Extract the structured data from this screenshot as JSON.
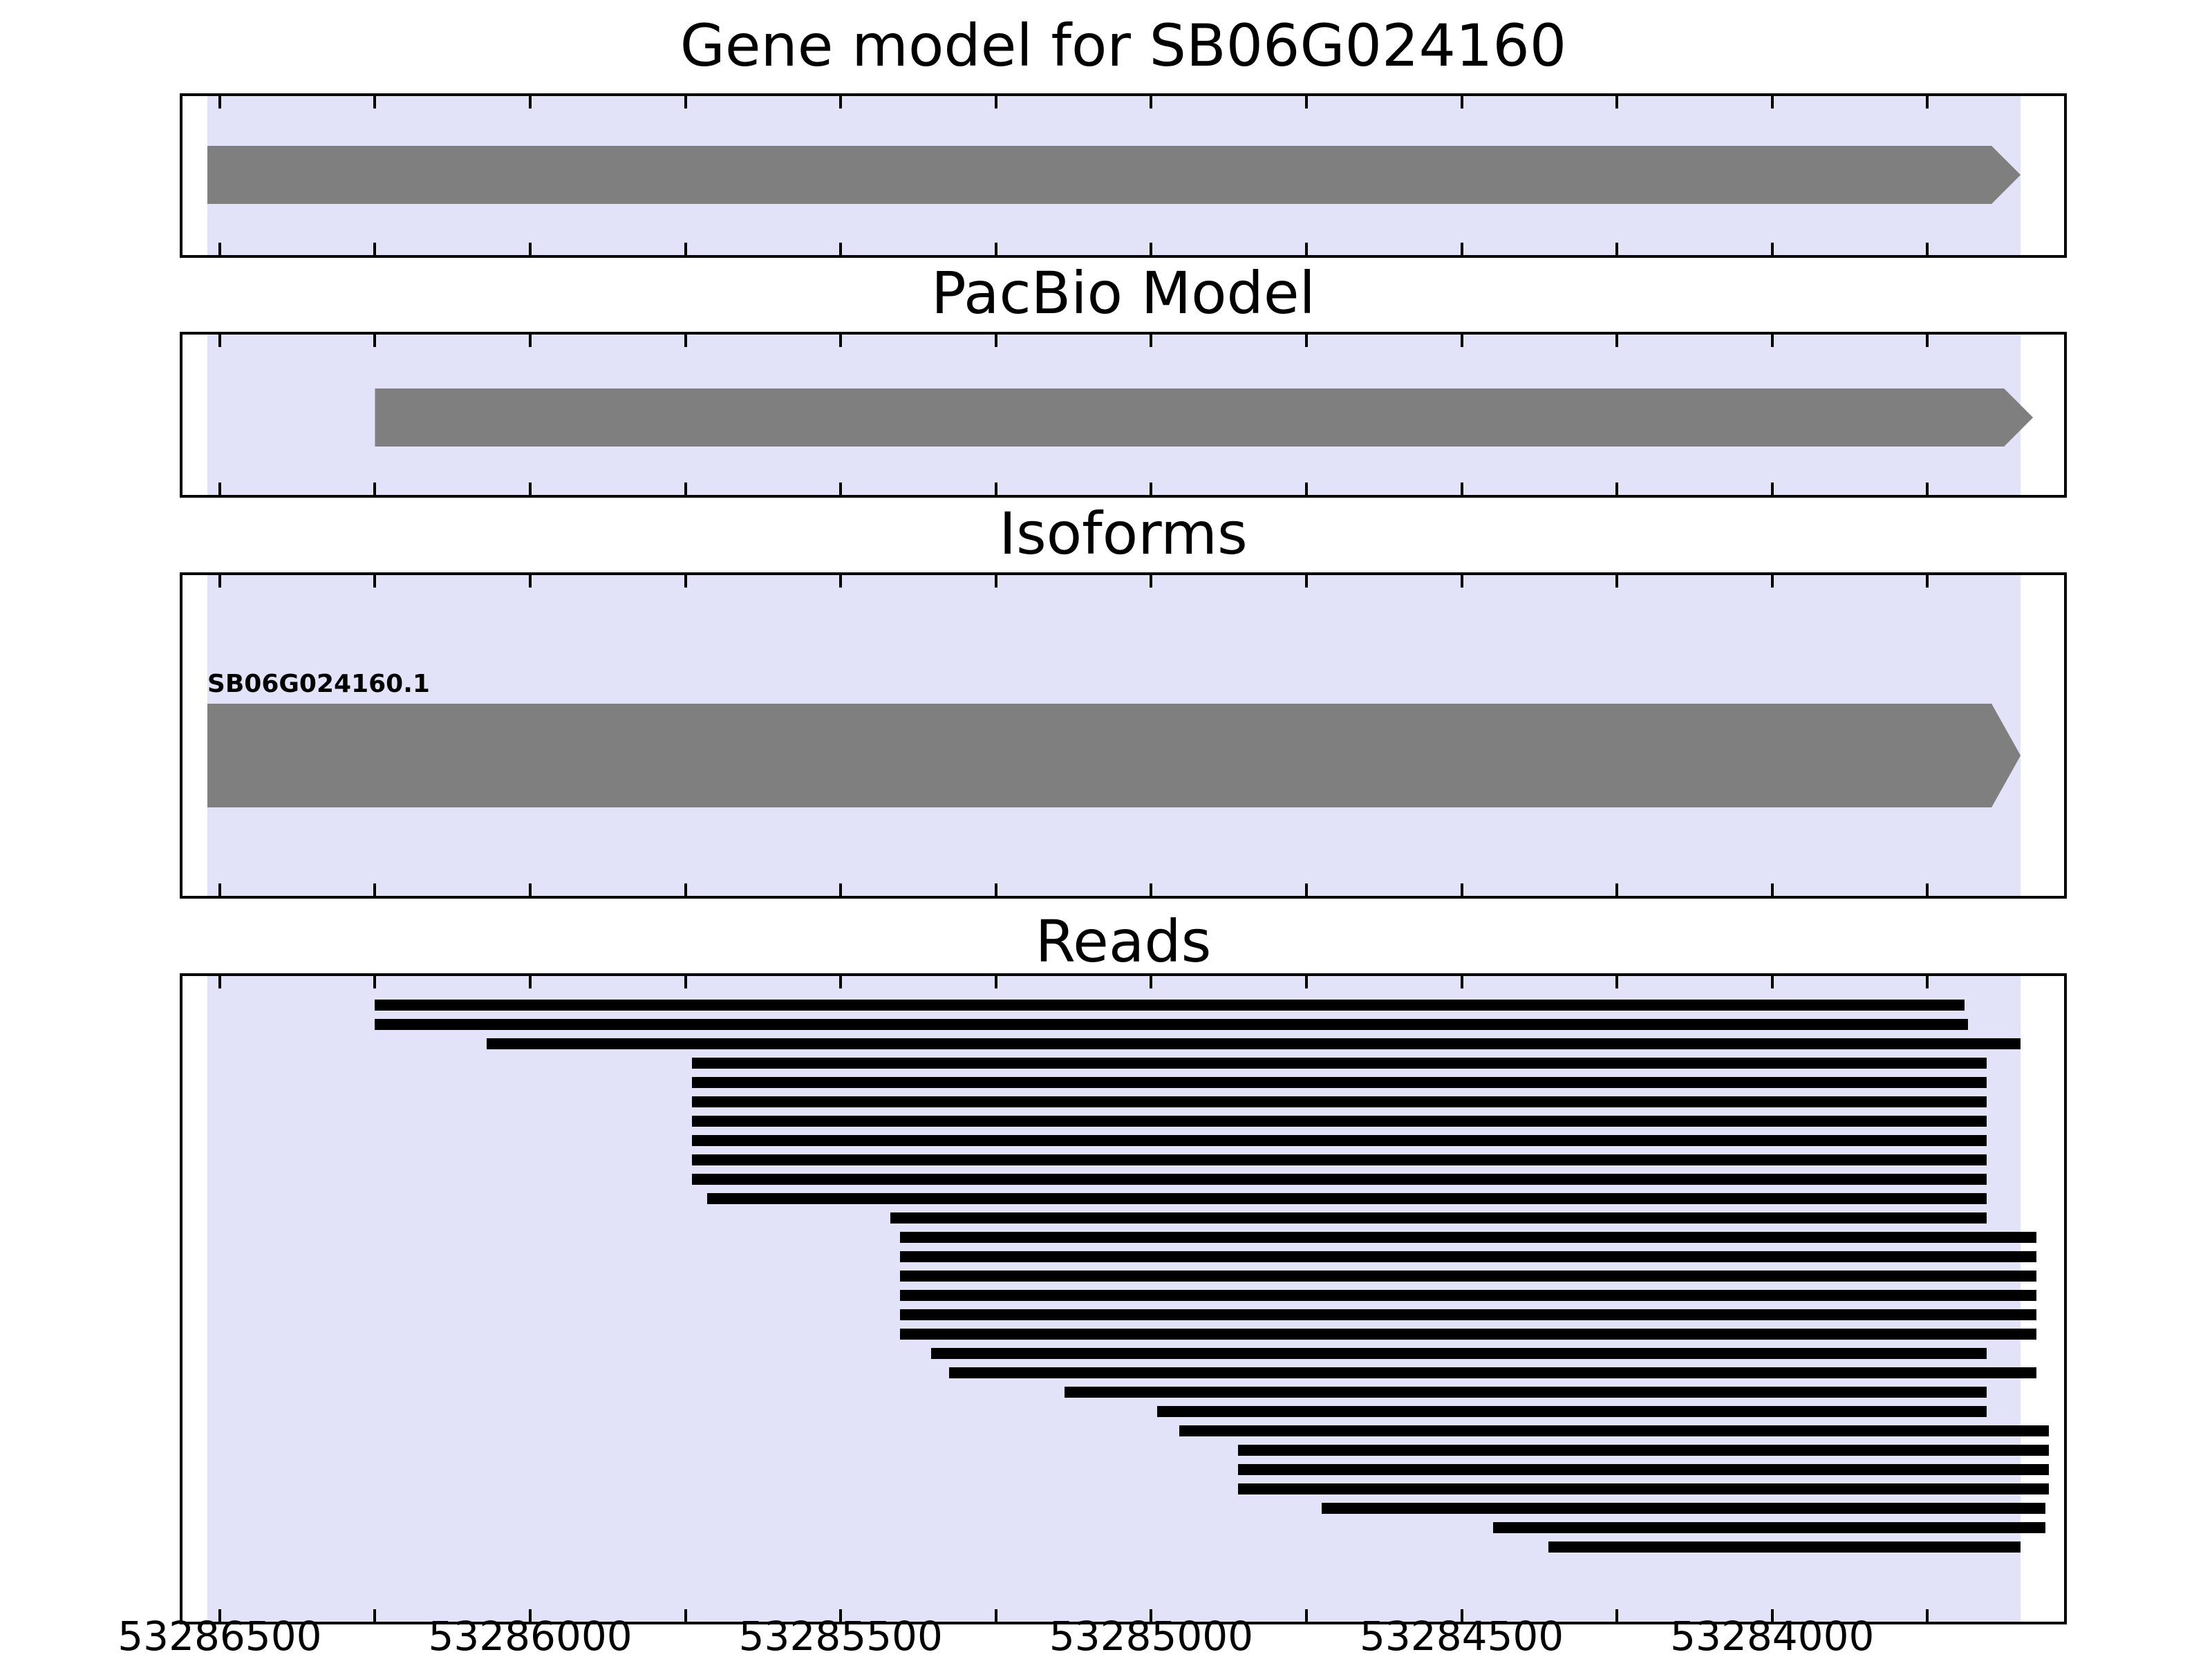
{
  "titles": {
    "gene_model": "Gene model for SB06G024160",
    "pacbio": "PacBio Model",
    "isoforms": "Isoforms",
    "reads": "Reads"
  },
  "chart_data": {
    "type": "bar",
    "subtype": "horizontal genomic interval tracks (gene browser)",
    "title": "Gene model for SB06G024160",
    "panels": [
      "Gene model for SB06G024160",
      "PacBio Model",
      "Isoforms",
      "Reads"
    ],
    "axis": {
      "xmax": 53286560,
      "xmin": 53283530,
      "reversed": true,
      "unit": "bp"
    },
    "x_ticks": [
      53286500,
      53286000,
      53285500,
      53285000,
      53284500,
      53284000
    ],
    "x_tick_labels": [
      "53286500",
      "53286000",
      "53285500",
      "53285000",
      "53284500",
      "53284000"
    ],
    "tick_range": [
      53286500,
      53283750
    ],
    "minor_tick_interval": 250,
    "highlight_span": [
      53286520,
      53283600
    ],
    "gene_model": {
      "start": 53286520,
      "end": 53283600,
      "direction": "right"
    },
    "pacbio_model": {
      "start": 53286250,
      "end": 53283580,
      "direction": "right"
    },
    "isoforms": [
      {
        "label": "SB06G024160.1",
        "start": 53286520,
        "end": 53283600,
        "direction": "right"
      }
    ],
    "reads": [
      [
        53286250,
        53283690
      ],
      [
        53286250,
        53283685
      ],
      [
        53286070,
        53283600
      ],
      [
        53285740,
        53283655
      ],
      [
        53285740,
        53283655
      ],
      [
        53285740,
        53283655
      ],
      [
        53285740,
        53283655
      ],
      [
        53285740,
        53283655
      ],
      [
        53285740,
        53283655
      ],
      [
        53285740,
        53283655
      ],
      [
        53285715,
        53283655
      ],
      [
        53285420,
        53283655
      ],
      [
        53285405,
        53283575
      ],
      [
        53285405,
        53283575
      ],
      [
        53285405,
        53283575
      ],
      [
        53285405,
        53283575
      ],
      [
        53285405,
        53283575
      ],
      [
        53285405,
        53283575
      ],
      [
        53285355,
        53283655
      ],
      [
        53285325,
        53283575
      ],
      [
        53285140,
        53283655
      ],
      [
        53284990,
        53283655
      ],
      [
        53284955,
        53283555
      ],
      [
        53284860,
        53283555
      ],
      [
        53284860,
        53283555
      ],
      [
        53284860,
        53283555
      ],
      [
        53284725,
        53283560
      ],
      [
        53284450,
        53283560
      ],
      [
        53284360,
        53283600
      ]
    ],
    "colors": {
      "feature_gray": "#7f7f7f",
      "read_black": "#000000",
      "highlight_lavender": "#e2e2f8",
      "background": "#ffffff",
      "axis_black": "#000000"
    }
  }
}
